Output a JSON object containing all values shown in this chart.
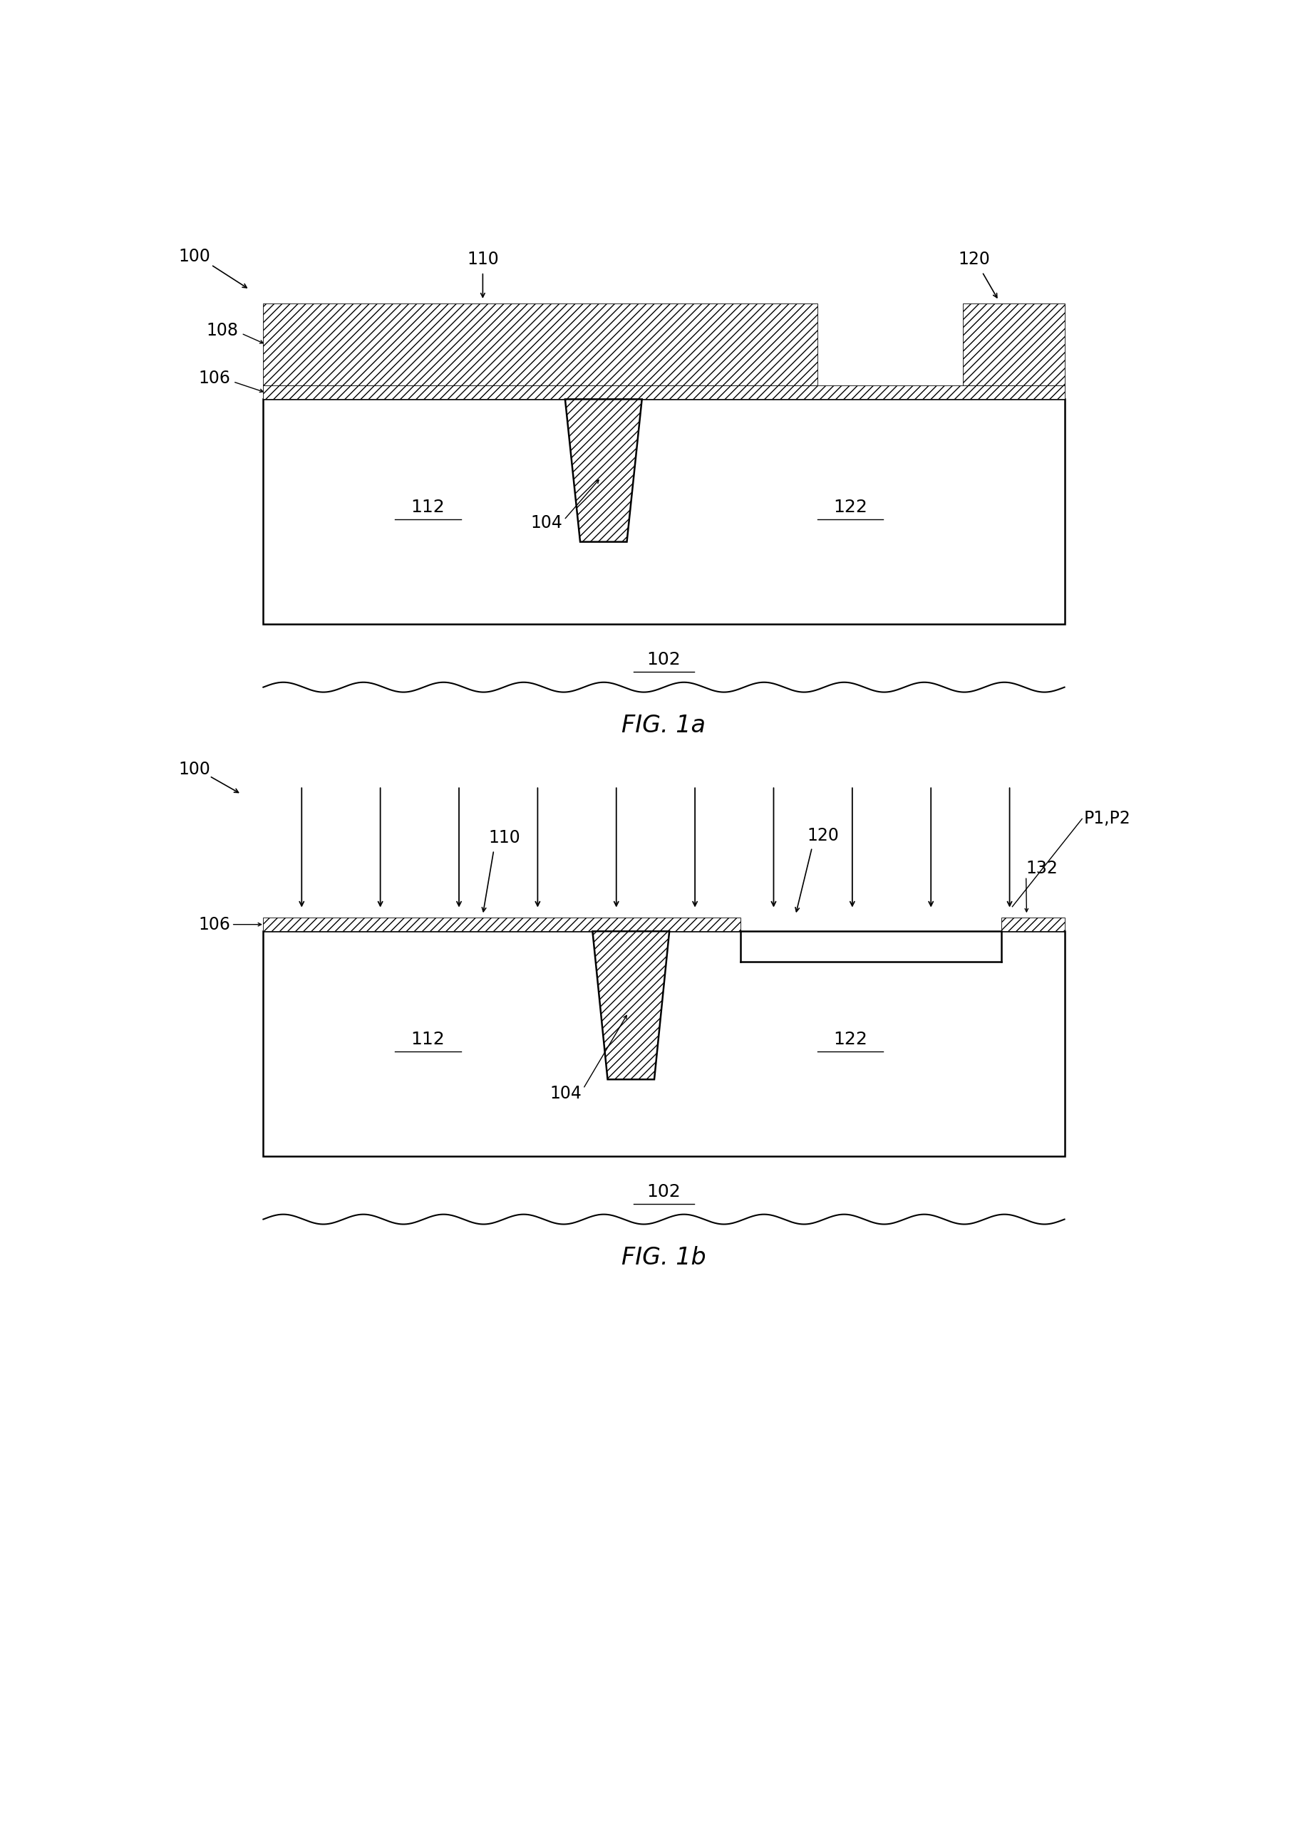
{
  "fig_width": 18.1,
  "fig_height": 25.59,
  "bg_color": "#ffffff",
  "fig1a_label": "FIG. 1a",
  "fig1b_label": "FIG. 1b",
  "labels": {
    "100a": "100",
    "110a": "110",
    "120a": "120",
    "102a": "102",
    "104a": "104",
    "106a": "106",
    "108a": "108",
    "112a": "112",
    "122a": "122",
    "100b": "100",
    "110b": "110",
    "120b": "120",
    "102b": "102",
    "104b": "104",
    "106b": "106",
    "112b": "112",
    "122b": "122",
    "132b": "132",
    "P1P2": "P1,P2"
  }
}
